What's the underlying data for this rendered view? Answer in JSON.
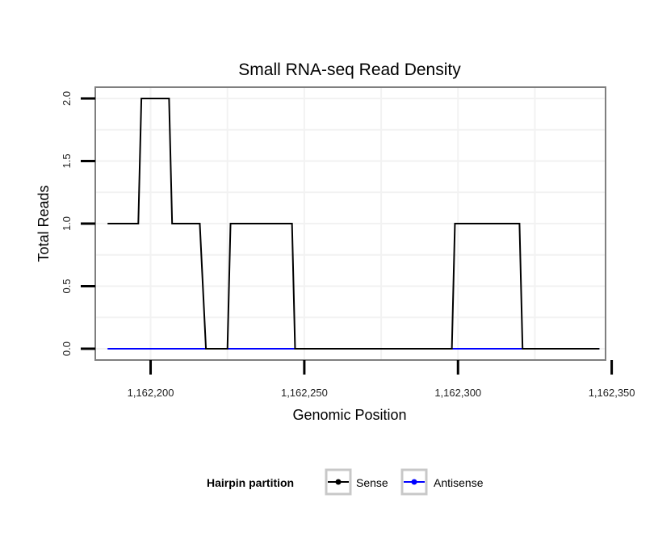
{
  "chart_data": {
    "type": "line",
    "title": "Small RNA-seq Read Density",
    "xlabel": "Genomic Position",
    "ylabel": "Total Reads",
    "xlim": [
      1162182,
      1162348
    ],
    "ylim": [
      -0.09,
      2.09
    ],
    "x_ticks": [
      1162200,
      1162250,
      1162300,
      1162350
    ],
    "x_tick_labels": [
      "1,162,200",
      "1,162,250",
      "1,162,300",
      "1,162,350"
    ],
    "y_ticks": [
      0.0,
      0.5,
      1.0,
      1.5,
      2.0
    ],
    "y_tick_labels": [
      "0.0",
      "0.5",
      "1.0",
      "1.5",
      "2.0"
    ],
    "grid": true,
    "legend_position": "bottom",
    "legend_title": "Hairpin partition",
    "series": [
      {
        "name": "Sense",
        "color": "#000000",
        "x": [
          1162186,
          1162196,
          1162197,
          1162206,
          1162207,
          1162216,
          1162218,
          1162225,
          1162226,
          1162246,
          1162247,
          1162298,
          1162299,
          1162320,
          1162321,
          1162346
        ],
        "y": [
          1,
          1,
          2,
          2,
          1,
          1,
          0,
          0,
          1,
          1,
          0,
          0,
          1,
          1,
          0,
          0
        ]
      },
      {
        "name": "Antisense",
        "color": "#0000ff",
        "x": [
          1162186,
          1162346
        ],
        "y": [
          0,
          0
        ]
      }
    ]
  }
}
